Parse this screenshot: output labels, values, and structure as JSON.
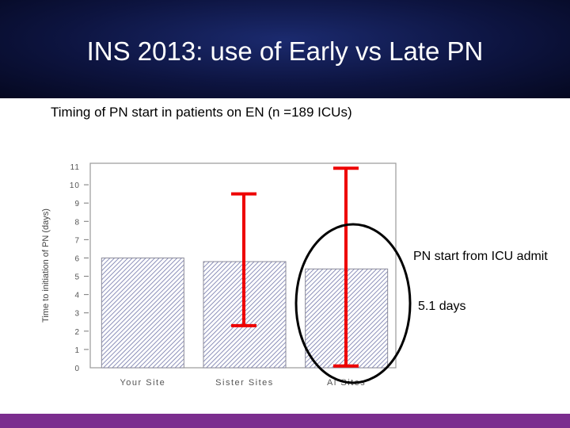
{
  "slide": {
    "title": "INS 2013: use of Early vs Late PN",
    "subtitle": "Timing of PN start in patients on EN (n =189 ICUs)",
    "annotation_line1": "PN start from ICU admit",
    "annotation_line2": "5.1 days"
  },
  "colors": {
    "header": "#0d1440",
    "footer": "#7b2d8e",
    "bar_hatch": "#6f74a8",
    "error_bar": "#ee0000",
    "ellipse": "#000000"
  },
  "chart_data": {
    "type": "bar",
    "categories": [
      "Your Site",
      "Sister Sites",
      "Al Sites"
    ],
    "values": [
      6.0,
      5.8,
      5.4
    ],
    "error_bars": [
      null,
      {
        "low": 2.3,
        "high": 9.5
      },
      {
        "low": 0.1,
        "high": 10.9
      }
    ],
    "ylabel": "Time to initiation of PN (days)",
    "yticks": [
      "0",
      "1",
      "2",
      "3",
      "4",
      "5",
      "6",
      "7",
      "8",
      "9",
      "10",
      "11"
    ],
    "ylim": [
      0,
      11
    ],
    "highlighted_category": "Al Sites",
    "grid": false
  }
}
